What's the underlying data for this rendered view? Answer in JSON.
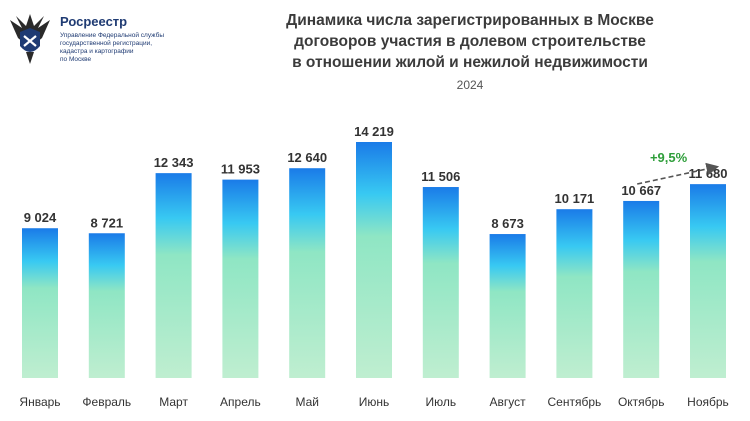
{
  "brand": {
    "name": "Росреестр",
    "subtitle_lines": [
      "Управление Федеральной службы",
      "государственной регистрации,",
      "кадастра и картографии",
      "по Москве"
    ],
    "colors": {
      "logo_blue": "#1f3b73",
      "logo_dark": "#2a2a2a"
    }
  },
  "header": {
    "title_lines": [
      "Динамика числа зарегистрированных в Москве",
      "договоров участия в долевом строительстве",
      "в отношении жилой и нежилой недвижимости"
    ],
    "year": "2024"
  },
  "chart_data": {
    "type": "bar",
    "categories": [
      "Январь",
      "Февраль",
      "Март",
      "Апрель",
      "Май",
      "Июнь",
      "Июль",
      "Август",
      "Сентябрь",
      "Октябрь",
      "Ноябрь"
    ],
    "values": [
      9024,
      8721,
      12343,
      11953,
      12640,
      14219,
      11506,
      8673,
      10171,
      10667,
      11680
    ],
    "value_labels": [
      "9 024",
      "8 721",
      "12 343",
      "11 953",
      "12 640",
      "14 219",
      "11 506",
      "8 673",
      "10 171",
      "10 667",
      "11 680"
    ],
    "ylim": [
      0,
      16000
    ],
    "grid": false,
    "annotation": {
      "text": "+9,5%",
      "from": "Октябрь",
      "to": "Ноябрь",
      "color": "#2e9e3a"
    },
    "colors": {
      "bar_top": "#1a7be8",
      "bar_mid": "#38c9f2",
      "bar_bottom": "#bfeed0",
      "label": "#333333"
    }
  }
}
